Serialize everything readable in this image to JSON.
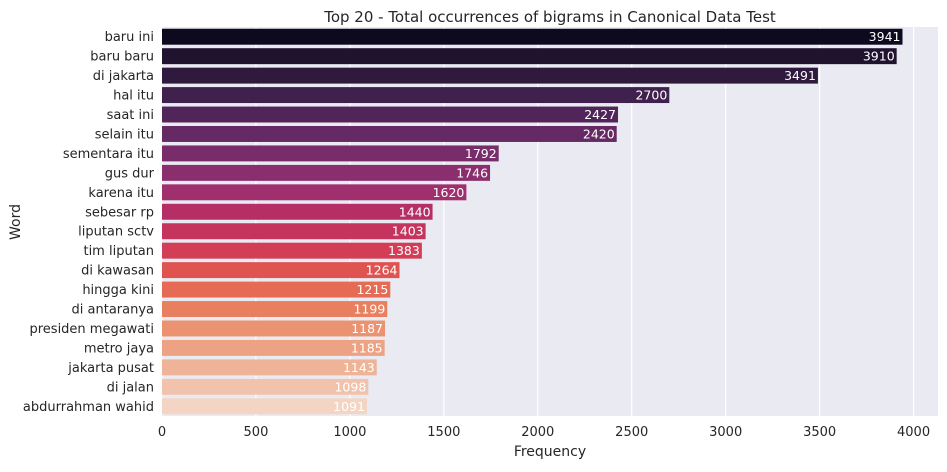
{
  "chart_data": {
    "type": "bar",
    "orientation": "horizontal",
    "title": "Top 20 - Total occurrences of bigrams in Canonical Data Test",
    "xlabel": "Frequency",
    "ylabel": "Word",
    "xlim": [
      0,
      4130
    ],
    "xticks": [
      0,
      500,
      1000,
      1500,
      2000,
      2500,
      3000,
      3500,
      4000
    ],
    "grid": true,
    "background": "#eaeaf2",
    "categories": [
      "baru ini",
      "baru baru",
      "di jakarta",
      "hal itu",
      "saat ini",
      "selain itu",
      "sementara itu",
      "gus dur",
      "karena itu",
      "sebesar rp",
      "liputan sctv",
      "tim liputan",
      "di kawasan",
      "hingga kini",
      "di antaranya",
      "presiden megawati",
      "metro jaya",
      "jakarta pusat",
      "di jalan",
      "abdurrahman wahid"
    ],
    "values": [
      3941,
      3910,
      3491,
      2700,
      2427,
      2420,
      1792,
      1746,
      1620,
      1440,
      1403,
      1383,
      1264,
      1215,
      1199,
      1187,
      1185,
      1143,
      1098,
      1091
    ],
    "colors": [
      "#0d0a1f",
      "#1f1330",
      "#2f1a3e",
      "#40204d",
      "#52255a",
      "#652963",
      "#782c6a",
      "#8b2e6d",
      "#a0306d",
      "#b52f66",
      "#c5345c",
      "#d33d55",
      "#df5450",
      "#e56b55",
      "#e8805f",
      "#eb9270",
      "#eda383",
      "#efb397",
      "#f1c3ac",
      "#f4d5c4"
    ]
  }
}
